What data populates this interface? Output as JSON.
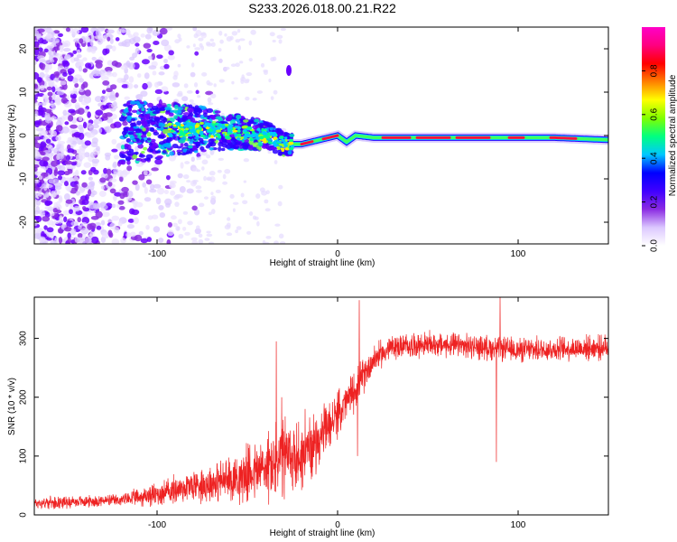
{
  "page": {
    "title": "S233.2026.018.00.21.R22"
  },
  "chart_data": [
    {
      "type": "heatmap",
      "title": "S233.2026.018.00.21.R22",
      "xlabel": "Height of straight line (km)",
      "ylabel": "Frequency (Hz)",
      "xlim": [
        -168,
        150
      ],
      "ylim": [
        -25,
        25
      ],
      "xticks": [
        -100,
        0,
        100
      ],
      "yticks": [
        -20,
        -10,
        0,
        10,
        20
      ],
      "colorbar": {
        "label": "Normalized spectral amplitude",
        "range": [
          0,
          1
        ],
        "ticks": [
          "0.0",
          "0.2",
          "0.4",
          "0.6",
          "0.8"
        ],
        "ticks_values": [
          0,
          0.2,
          0.4,
          0.6,
          0.8
        ],
        "colors": [
          "#ffffff",
          "#dcc8ff",
          "#8a2be2",
          "#4000ff",
          "#0000ff",
          "#00c8ff",
          "#00ff80",
          "#80ff00",
          "#ffff00",
          "#ff8000",
          "#ff0000",
          "#ff0080",
          "#ff00c8"
        ]
      },
      "ridge": {
        "description_points_x": [
          -120,
          -100,
          -80,
          -60,
          -40,
          -30,
          -20,
          -10,
          0,
          5,
          10,
          20,
          40,
          60,
          80,
          100,
          120,
          150
        ],
        "description_points_y": [
          1.0,
          1.0,
          1.5,
          1.0,
          0.0,
          -2.0,
          -2.0,
          -1.0,
          0.0,
          -1.5,
          0.0,
          -0.5,
          -0.5,
          -0.5,
          -0.5,
          -0.5,
          -0.5,
          -1.0
        ]
      },
      "scatter_blobs": [
        [
          -27,
          15
        ]
      ]
    },
    {
      "type": "line",
      "title": "",
      "xlabel": "Height of straight line (km)",
      "ylabel": "SNR (10 * v/v)",
      "xlim": [
        -168,
        150
      ],
      "ylim": [
        0,
        370
      ],
      "xticks": [
        -100,
        0,
        100
      ],
      "yticks": [
        0,
        100,
        200,
        300
      ],
      "color": "#ee2222",
      "series": [
        {
          "name": "SNR trend",
          "x": [
            -168,
            -120,
            -100,
            -80,
            -60,
            -40,
            -30,
            -20,
            -10,
            0,
            10,
            20,
            30,
            50,
            80,
            100,
            120,
            150
          ],
          "values": [
            20,
            25,
            35,
            50,
            60,
            80,
            95,
            100,
            130,
            170,
            215,
            265,
            285,
            290,
            285,
            280,
            282,
            285
          ],
          "noise_amplitude": [
            12,
            12,
            25,
            35,
            45,
            70,
            90,
            70,
            55,
            45,
            40,
            30,
            25,
            25,
            25,
            25,
            25,
            25
          ]
        }
      ],
      "spikes": [
        [
          -34,
          295
        ],
        [
          -31,
          200
        ],
        [
          -18,
          180
        ],
        [
          12,
          365
        ],
        [
          11,
          100
        ],
        [
          90,
          370
        ],
        [
          88,
          90
        ]
      ]
    }
  ]
}
